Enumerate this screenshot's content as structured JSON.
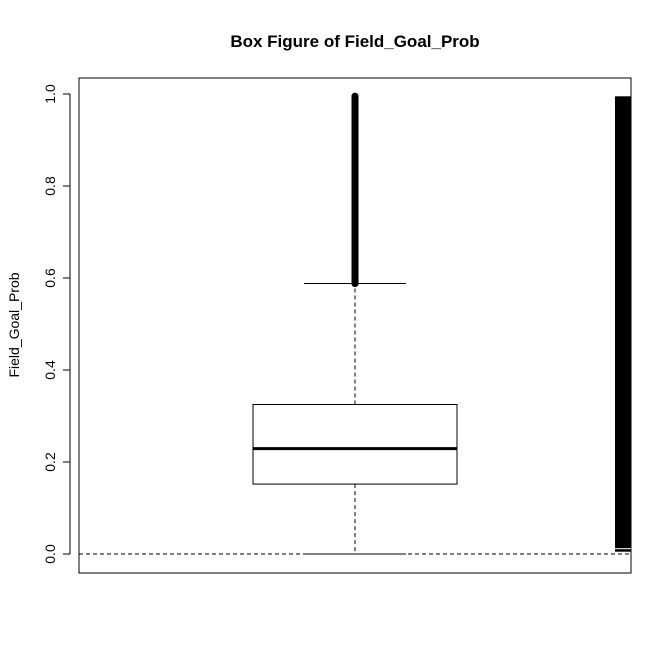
{
  "chart_data": {
    "type": "box",
    "title": "Box Figure of Field_Goal_Prob",
    "xlabel": "",
    "ylabel": "Field_Goal_Prob",
    "ylim": [
      -0.04,
      1.03
    ],
    "yticks": [
      0.0,
      0.2,
      0.4,
      0.6,
      0.8,
      1.0
    ],
    "ytick_labels": [
      "0.0",
      "0.2",
      "0.4",
      "0.6",
      "0.8",
      "1.0"
    ],
    "grid": false,
    "legend": "none",
    "box": {
      "lower_whisker": 0.0,
      "q1": 0.152,
      "median": 0.229,
      "q3": 0.325,
      "upper_whisker": 0.588,
      "outliers_range": [
        0.588,
        0.995
      ]
    },
    "reference_line": {
      "y": 0.0,
      "style": "dashed"
    },
    "rug": {
      "range": [
        0.005,
        0.995
      ],
      "side": "right"
    },
    "colors": {
      "foreground": "#000000",
      "background": "#ffffff"
    }
  }
}
